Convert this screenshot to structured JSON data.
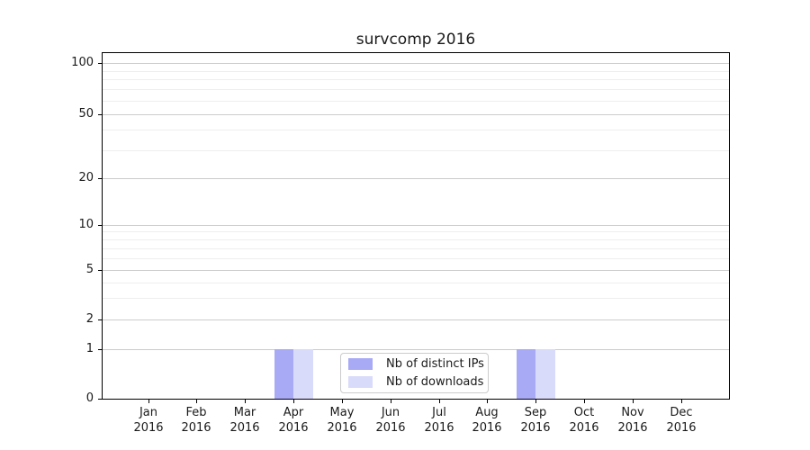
{
  "chart_data": {
    "type": "bar",
    "title": "survcomp 2016",
    "xlabel": "",
    "ylabel": "",
    "yscale": "symlog",
    "ylim": [
      0,
      114
    ],
    "yticks": [
      0,
      1,
      2,
      5,
      10,
      20,
      50,
      100
    ],
    "yticks_minor": [
      3,
      4,
      6,
      7,
      8,
      9,
      30,
      40,
      60,
      70,
      80,
      90
    ],
    "grid": {
      "major": true,
      "minor": true
    },
    "legend_position": "lower center (inside plot)",
    "categories": [
      "Jan 2016",
      "Feb 2016",
      "Mar 2016",
      "Apr 2016",
      "May 2016",
      "Jun 2016",
      "Jul 2016",
      "Aug 2016",
      "Sep 2016",
      "Oct 2016",
      "Nov 2016",
      "Dec 2016"
    ],
    "series": [
      {
        "name": "Nb of distinct IPs",
        "color": "#a8aaf6",
        "values": [
          0,
          0,
          0,
          1,
          0,
          0,
          0,
          0,
          1,
          0,
          0,
          0
        ]
      },
      {
        "name": "Nb of downloads",
        "color": "#d9dbfa",
        "values": [
          0,
          0,
          0,
          1,
          0,
          0,
          0,
          0,
          1,
          0,
          0,
          0
        ]
      }
    ]
  },
  "colors": {
    "grid_major": "#cccccc",
    "grid_minor": "#eeeeee",
    "axis": "#000000",
    "text": "#1a1a1a",
    "legend_border": "#cccccc",
    "background": "#ffffff"
  }
}
